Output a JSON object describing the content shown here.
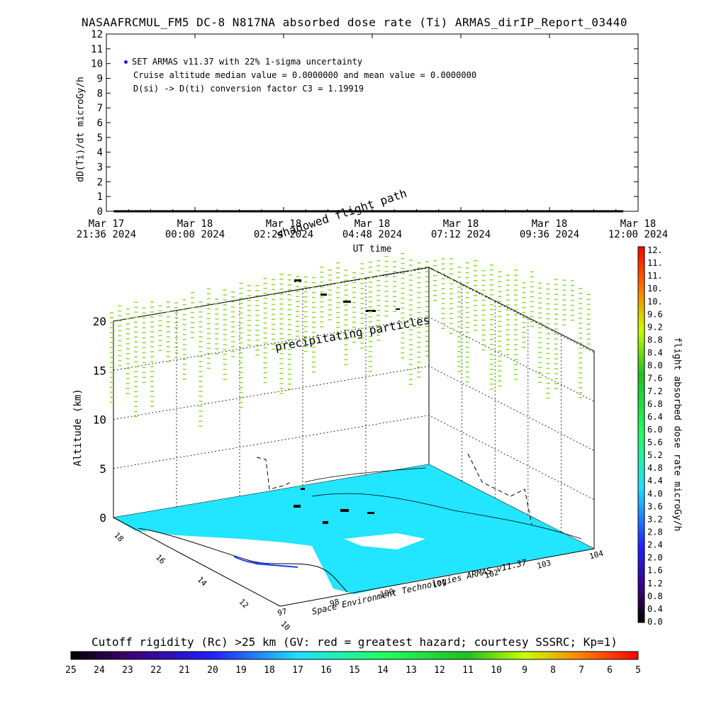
{
  "title": "NASAAFRCMUL_FM5 DC-8   N817NA absorbed dose rate (Ti) ARMAS_dirIP_Report_03440",
  "legend": {
    "series_label": "SET ARMAS v11.37 with 22% 1-sigma uncertainty",
    "line2": "Cruise altitude median value = 0.0000000 and mean value = 0.0000000",
    "line3": "D(si) -> D(ti) conversion factor C3 = 1.19919"
  },
  "colors": {
    "series_point": "#1a1aff",
    "trace": "#000000",
    "map_fill": "#22e5ff",
    "particles": "#88dd22"
  },
  "chart_data": [
    {
      "type": "line",
      "title": "",
      "xlabel": "UT time",
      "ylabel": "dD(Ti)/dt microGy/h",
      "ylim": [
        0,
        12
      ],
      "yticks": [
        "0",
        "1",
        "2",
        "3",
        "4",
        "5",
        "6",
        "7",
        "8",
        "9",
        "10",
        "11",
        "12"
      ],
      "xticks": [
        {
          "line1": "Mar 17",
          "line2": "21:36 2024"
        },
        {
          "line1": "Mar 18",
          "line2": "00:00 2024"
        },
        {
          "line1": "Mar 18",
          "line2": "02:24 2024"
        },
        {
          "line1": "Mar 18",
          "line2": "04:48 2024"
        },
        {
          "line1": "Mar 18",
          "line2": "07:12 2024"
        },
        {
          "line1": "Mar 18",
          "line2": "09:36 2024"
        },
        {
          "line1": "Mar 18",
          "line2": "12:00 2024"
        }
      ],
      "series": [
        {
          "name": "SET ARMAS v11.37",
          "x_range": [
            "Mar 17 21:48 2024",
            "Mar 18 11:36 2024"
          ],
          "values_constant": 0.0
        }
      ]
    },
    {
      "type": "scatter",
      "title": "",
      "zlabel": "Altitude (km)",
      "zticks": [
        "0",
        "5",
        "10",
        "15",
        "20"
      ],
      "zlim": [
        0,
        22
      ],
      "lon_ticks": [
        "97",
        "98",
        "100",
        "101",
        "102",
        "103",
        "104"
      ],
      "lat_ticks": [
        "10",
        "12",
        "14",
        "16",
        "18"
      ],
      "annotations": [
        "shadowed flight path",
        "precipitating particles",
        "Space Environment Technologies ARMAS v11.37"
      ],
      "colorbar_right": {
        "label": "flight absorbed dose rate microGy/h",
        "ticks": [
          "0.0",
          "0.4",
          "0.8",
          "1.2",
          "1.6",
          "2.0",
          "2.4",
          "2.8",
          "3.2",
          "3.6",
          "4.0",
          "4.4",
          "4.8",
          "5.2",
          "5.6",
          "6.0",
          "6.4",
          "6.8",
          "7.2",
          "7.6",
          "8.0",
          "8.4",
          "8.8",
          "9.2",
          "9.6",
          "10.",
          "10.",
          "11.",
          "11.",
          "12."
        ]
      },
      "colorbar_bottom": {
        "title": "Cutoff rigidity (Rc) >25 km (GV: red = greatest hazard; courtesy SSSRC; Kp=1)",
        "ticks": [
          "25",
          "24",
          "23",
          "22",
          "21",
          "20",
          "19",
          "18",
          "17",
          "16",
          "15",
          "14",
          "13",
          "12",
          "11",
          "10",
          "9",
          "8",
          "7",
          "6",
          "5"
        ]
      }
    }
  ]
}
